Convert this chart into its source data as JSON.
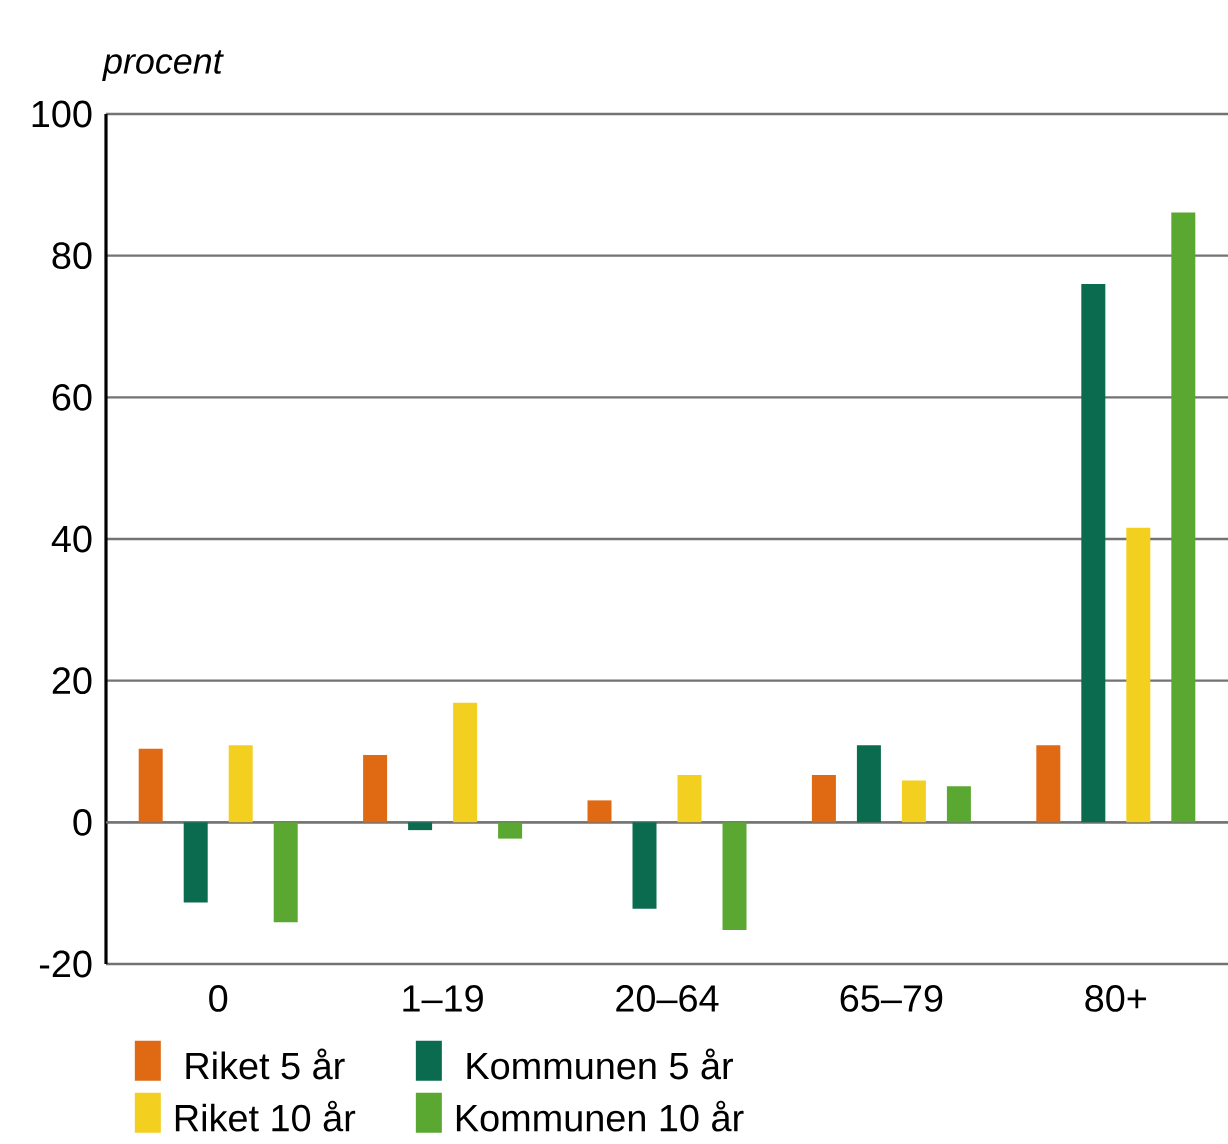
{
  "chart_data": {
    "type": "bar",
    "ylabel": "procent",
    "categories": [
      "0",
      "1–19",
      "20–64",
      "65–79",
      "80+"
    ],
    "series": [
      {
        "name": "Riket 5 år",
        "color": "#e06a14",
        "values": [
          10.4,
          9.5,
          3.1,
          6.7,
          10.9
        ]
      },
      {
        "name": "Kommunen 5 år",
        "color": "#0a6b4f",
        "values": [
          -11.3,
          -1.1,
          -12.2,
          10.9,
          76
        ]
      },
      {
        "name": "Riket 10 år",
        "color": "#f3d020",
        "values": [
          10.9,
          16.9,
          6.7,
          5.9,
          41.6
        ]
      },
      {
        "name": "Kommunen 10 år",
        "color": "#5aa832",
        "values": [
          -14.1,
          -2.3,
          -15.2,
          5.1,
          86.1
        ]
      }
    ],
    "ylim": [
      -20,
      100
    ],
    "yticks": [
      -20,
      0,
      20,
      40,
      60,
      80,
      100
    ],
    "grid": "y",
    "legend": "bottom"
  }
}
